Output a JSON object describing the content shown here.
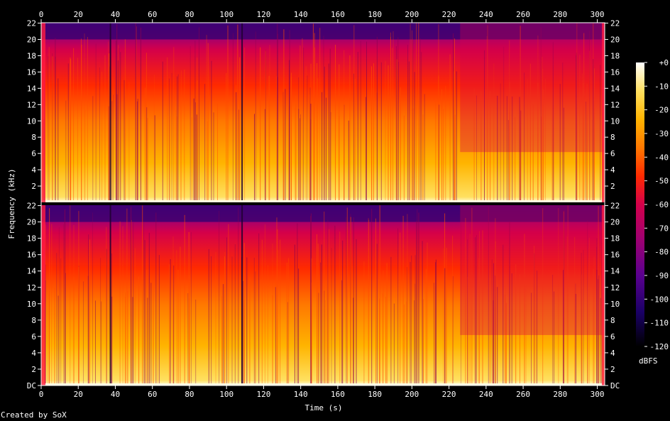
{
  "chart_data": {
    "type": "heatmap",
    "chart_kind": "spectrogram",
    "channels": 2,
    "xlabel": "Time (s)",
    "ylabel": "Frequency (kHz)",
    "x_ticks": [
      "0",
      "20",
      "40",
      "60",
      "80",
      "100",
      "120",
      "140",
      "160",
      "180",
      "200",
      "220",
      "240",
      "260",
      "280",
      "300"
    ],
    "xlim": [
      0,
      304
    ],
    "y_ticks": [
      "DC",
      "2",
      "4",
      "6",
      "8",
      "10",
      "12",
      "14",
      "16",
      "18",
      "20",
      "22"
    ],
    "ylim_khz": [
      0,
      22.05
    ],
    "colorbar": {
      "label": "dBFS",
      "ticks": [
        "+0",
        "-10",
        "-20",
        "-30",
        "-40",
        "-50",
        "-60",
        "-70",
        "-80",
        "-90",
        "-100",
        "-110",
        "-120"
      ],
      "range_db": [
        -120,
        0
      ]
    },
    "dark_vertical_gaps_s": [
      37,
      108
    ],
    "hf_cutoff_khz": 20,
    "colormap": [
      "#000000",
      "#1a0066",
      "#5a0090",
      "#a00070",
      "#d4004a",
      "#ff2a00",
      "#ff7800",
      "#ffb400",
      "#ffe060",
      "#ffffe0"
    ]
  },
  "footer": {
    "credit": "Created by SoX"
  }
}
